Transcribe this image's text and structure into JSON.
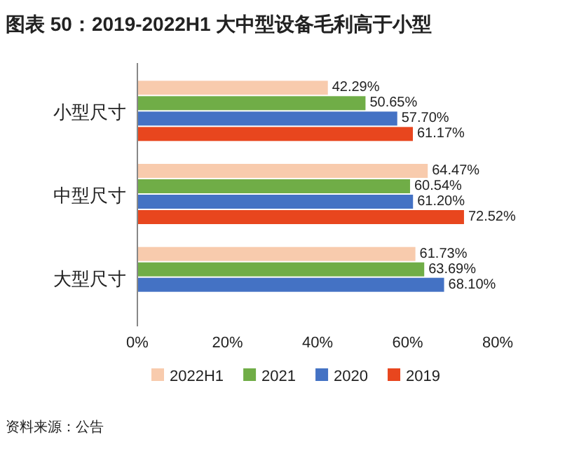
{
  "chart_data": {
    "type": "bar",
    "orientation": "horizontal",
    "title": "图表 50：2019-2022H1 大中型设备毛利高于小型",
    "categories": [
      "小型尺寸",
      "中型尺寸",
      "大型尺寸"
    ],
    "series": [
      {
        "name": "2022H1",
        "color": "#f8cbad",
        "values": [
          42.29,
          64.47,
          61.73
        ],
        "value_labels": [
          "42.29%",
          "64.47%",
          "61.73%"
        ]
      },
      {
        "name": "2021",
        "color": "#70ad47",
        "values": [
          50.65,
          60.54,
          63.69
        ],
        "value_labels": [
          "50.65%",
          "60.54%",
          "63.69%"
        ]
      },
      {
        "name": "2020",
        "color": "#4472c4",
        "values": [
          57.7,
          61.2,
          68.1
        ],
        "value_labels": [
          "57.70%",
          "61.20%",
          "68.10%"
        ]
      },
      {
        "name": "2019",
        "color": "#e8461e",
        "values": [
          61.17,
          72.52,
          null
        ],
        "value_labels": [
          "61.17%",
          "72.52%",
          null
        ]
      }
    ],
    "xlim": [
      0,
      80
    ],
    "xticks": [
      {
        "value": 0,
        "label": "0%"
      },
      {
        "value": 20,
        "label": "20%"
      },
      {
        "value": 40,
        "label": "40%"
      },
      {
        "value": 60,
        "label": "60%"
      },
      {
        "value": 80,
        "label": "80%"
      }
    ],
    "legend": "bottom",
    "annotations": [
      "资料来源：公告"
    ]
  }
}
